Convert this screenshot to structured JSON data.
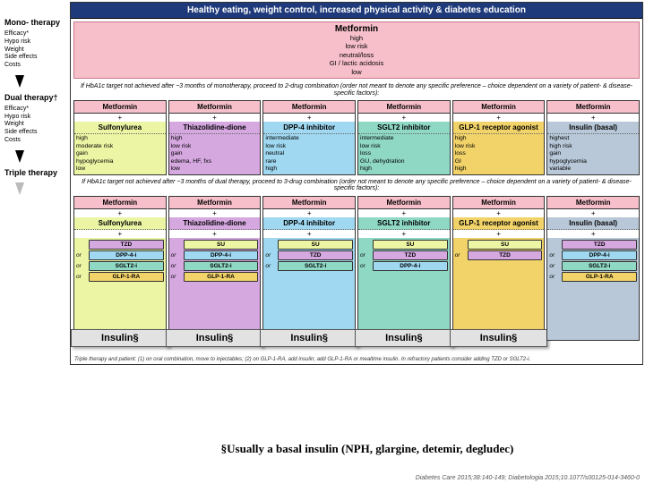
{
  "header": "Healthy eating, weight control, increased physical activity & diabetes education",
  "sidebar": {
    "mono": {
      "title": "Mono-\ntherapy",
      "attrs": [
        "Efficacy*",
        "Hypo risk",
        "Weight",
        "Side effects",
        "Costs"
      ]
    },
    "dual": {
      "title": "Dual\ntherapy†",
      "attrs": [
        "Efficacy*",
        "Hypo risk",
        "Weight",
        "Side effects",
        "Costs"
      ]
    },
    "triple": {
      "title": "Triple\ntherapy"
    }
  },
  "mono": {
    "drug": "Metformin",
    "rows": [
      "high",
      "low risk",
      "neutral/loss",
      "GI / lactic acidosis",
      "low"
    ]
  },
  "transition1": "If HbA1c target not achieved after ~3 months of monotherapy, proceed to 2-drug combination (order not meant to denote any specific preference – choice dependent on a variety of patient- & disease-specific factors):",
  "transition2": "If HbA1c target not achieved after ~3 months of dual therapy, proceed to 3-drug combination (order not meant to denote any specific preference – choice dependent on a variety of patient- & disease-specific factors):",
  "colors": {
    "su": "#ebf5a3",
    "tzd": "#d5a8e0",
    "dpp4": "#9fd8f0",
    "sglt2": "#8fd8c4",
    "glp1": "#f2d36a",
    "insulin": "#b8c8d8",
    "met_pink": "#f7bfc9"
  },
  "dual": [
    {
      "top": "Metformin",
      "drug": "Sulfonylurea",
      "color": "#ebf5a3",
      "attrs": [
        "high",
        "moderate risk",
        "gain",
        "hypoglycemia",
        "low"
      ]
    },
    {
      "top": "Metformin",
      "drug": "Thiazolidine-dione",
      "color": "#d5a8e0",
      "attrs": [
        "high",
        "low risk",
        "gain",
        "edema, HF, fxs",
        "low"
      ]
    },
    {
      "top": "Metformin",
      "drug": "DPP-4 inhibitor",
      "color": "#9fd8f0",
      "attrs": [
        "intermediate",
        "low risk",
        "neutral",
        "rare",
        "high"
      ]
    },
    {
      "top": "Metformin",
      "drug": "SGLT2 inhibitor",
      "color": "#8fd8c4",
      "attrs": [
        "intermediate",
        "low risk",
        "loss",
        "GU, dehydration",
        "high"
      ]
    },
    {
      "top": "Metformin",
      "drug": "GLP-1 receptor agonist",
      "color": "#f2d36a",
      "attrs": [
        "high",
        "low risk",
        "loss",
        "GI",
        "high"
      ]
    },
    {
      "top": "Metformin",
      "drug": "Insulin (basal)",
      "color": "#b8c8d8",
      "attrs": [
        "highest",
        "high risk",
        "gain",
        "hypoglycemia",
        "variable"
      ]
    }
  ],
  "triple": [
    {
      "top": "Metformin",
      "drug": "Sulfonylurea",
      "color": "#ebf5a3",
      "options": [
        [
          "TZD",
          "#d5a8e0"
        ],
        [
          "DPP-4-i",
          "#9fd8f0"
        ],
        [
          "SGLT2-i",
          "#8fd8c4"
        ],
        [
          "GLP-1-RA",
          "#f2d36a"
        ]
      ],
      "insulin": "Insulin§"
    },
    {
      "top": "Metformin",
      "drug": "Thiazolidine-dione",
      "color": "#d5a8e0",
      "options": [
        [
          "SU",
          "#ebf5a3"
        ],
        [
          "DPP-4-i",
          "#9fd8f0"
        ],
        [
          "SGLT2-i",
          "#8fd8c4"
        ],
        [
          "GLP-1-RA",
          "#f2d36a"
        ]
      ],
      "insulin": "Insulin§"
    },
    {
      "top": "Metformin",
      "drug": "DPP-4 inhibitor",
      "color": "#9fd8f0",
      "options": [
        [
          "SU",
          "#ebf5a3"
        ],
        [
          "TZD",
          "#d5a8e0"
        ],
        [
          "SGLT2-i",
          "#8fd8c4"
        ]
      ],
      "insulin": "Insulin§"
    },
    {
      "top": "Metformin",
      "drug": "SGLT2 inhibitor",
      "color": "#8fd8c4",
      "options": [
        [
          "SU",
          "#ebf5a3"
        ],
        [
          "TZD",
          "#d5a8e0"
        ],
        [
          "DPP-4-i",
          "#9fd8f0"
        ]
      ],
      "insulin": "Insulin§"
    },
    {
      "top": "Metformin",
      "drug": "GLP-1 receptor agonist",
      "color": "#f2d36a",
      "options": [
        [
          "SU",
          "#ebf5a3"
        ],
        [
          "TZD",
          "#d5a8e0"
        ]
      ],
      "insulin": "Insulin§"
    },
    {
      "top": "Metformin",
      "drug": "Insulin (basal)",
      "color": "#b8c8d8",
      "options": [
        [
          "TZD",
          "#d5a8e0"
        ],
        [
          "DPP-4-i",
          "#9fd8f0"
        ],
        [
          "SGLT2-i",
          "#8fd8c4"
        ],
        [
          "GLP-1-RA",
          "#f2d36a"
        ]
      ],
      "insulin": null
    }
  ],
  "tiny_foot": "Triple therapy and patient: (1) on oral combination, move to injectables; (2) on GLP-1-RA, add insulin; add GLP-1-RA or mealtime insulin. In refractory patients consider adding TZD or SGLT2-i.",
  "footnote": "§Usually a basal insulin (NPH, glargine, detemir, degludec)",
  "citation": "Diabetes Care 2015;38:140-149; Diabetologia 2015;10.1077/s00125-014-3460-0"
}
